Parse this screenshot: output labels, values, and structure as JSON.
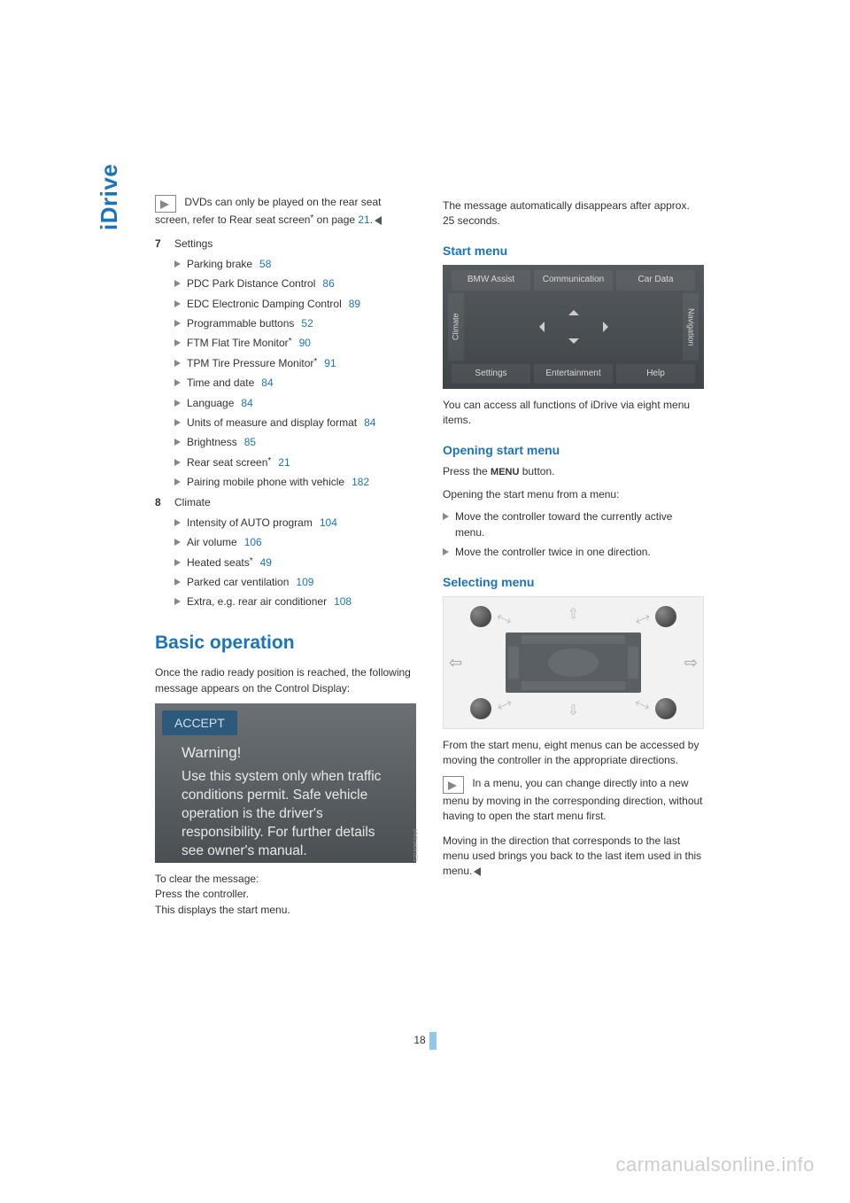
{
  "sidebar": {
    "label": "iDrive"
  },
  "leftCol": {
    "noteTop": {
      "text1": "DVDs can only be played on the rear seat screen, refer to Rear seat screen",
      "text2": " on page ",
      "pageRef": "21",
      "text3": "."
    },
    "item7": {
      "num": "7",
      "label": "Settings",
      "subs": [
        {
          "text": "Parking brake",
          "page": "58",
          "star": false
        },
        {
          "text": "PDC Park Distance Control",
          "page": "86",
          "star": false
        },
        {
          "text": "EDC Electronic Damping Control",
          "page": "89",
          "star": false
        },
        {
          "text": "Programmable buttons",
          "page": "52",
          "star": false
        },
        {
          "text": "FTM Flat Tire Monitor",
          "page": "90",
          "star": true
        },
        {
          "text": "TPM Tire Pressure Monitor",
          "page": "91",
          "star": true
        },
        {
          "text": "Time and date",
          "page": "84",
          "star": false
        },
        {
          "text": "Language",
          "page": "84",
          "star": false
        },
        {
          "text": "Units of measure and display format",
          "page": "84",
          "star": false
        },
        {
          "text": "Brightness",
          "page": "85",
          "star": false
        },
        {
          "text": "Rear seat screen",
          "page": "21",
          "star": true
        },
        {
          "text": "Pairing mobile phone with vehicle",
          "page": "182",
          "star": false
        }
      ]
    },
    "item8": {
      "num": "8",
      "label": "Climate",
      "subs": [
        {
          "text": "Intensity of AUTO program",
          "page": "104",
          "star": false
        },
        {
          "text": "Air volume",
          "page": "106",
          "star": false
        },
        {
          "text": "Heated seats",
          "page": "49",
          "star": true
        },
        {
          "text": "Parked car ventilation",
          "page": "109",
          "star": false
        },
        {
          "text": "Extra, e.g. rear air conditioner",
          "page": "108",
          "star": false
        }
      ]
    },
    "basicOp": {
      "heading": "Basic operation",
      "intro": "Once the radio ready position is reached, the following message appears on the Control Display:",
      "warning": {
        "accept": "ACCEPT",
        "title": "Warning!",
        "body": "Use this system only when traffic conditions permit. Safe vehicle operation is the driver's responsibility. For further details see owner's manual."
      },
      "clear1": "To clear the message:",
      "clear2": "Press the controller.",
      "clear3": "This displays the start menu."
    }
  },
  "rightCol": {
    "topPara": "The message automatically disappears after approx. 25 seconds.",
    "startMenu": {
      "heading": "Start menu",
      "buttons": {
        "top": [
          "BMW Assist",
          "Communication",
          "Car Data"
        ],
        "bottom": [
          "Settings",
          "Entertainment",
          "Help"
        ],
        "left": "Climate",
        "right": "Navigation"
      },
      "caption": "You can access all functions of iDrive via eight menu items."
    },
    "opening": {
      "heading": "Opening start menu",
      "line1a": "Press the ",
      "menuWord": "MENU",
      "line1b": " button.",
      "line2": "Opening the start menu from a menu:",
      "bullets": [
        "Move the controller toward the currently active menu.",
        "Move the controller twice in one direction."
      ]
    },
    "selecting": {
      "heading": "Selecting menu",
      "para1": "From the start menu, eight menus can be accessed by moving the controller in the appropriate directions.",
      "noteText": "In a menu, you can change directly into a new menu by moving in the corresponding direction, without having to open the start menu first.",
      "para2": "Moving in the direction that corresponds to the last menu used brings you back to the last item used in this menu."
    }
  },
  "pageNumber": "18",
  "watermark": "carmanualsonline.info",
  "star": "*"
}
